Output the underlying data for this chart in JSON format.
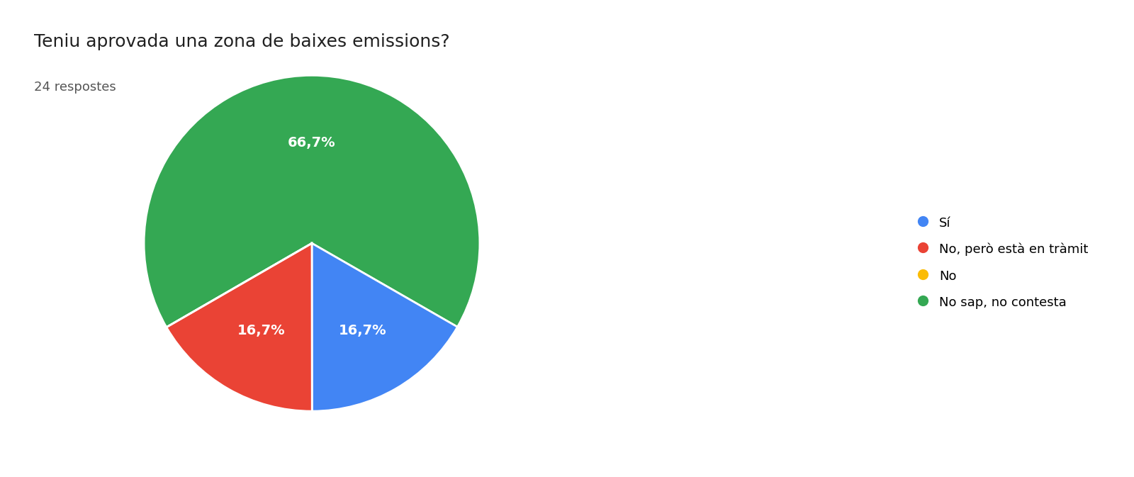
{
  "title": "Teniu aprovada una zona de baixes emissions?",
  "subtitle": "24 respostes",
  "labels": [
    "Sí",
    "No, però està en tràmit",
    "No",
    "No sap, no contesta"
  ],
  "values": [
    16.7,
    16.7,
    0.0,
    66.7
  ],
  "colors": [
    "#4285F4",
    "#EA4335",
    "#FBBC04",
    "#34A853"
  ],
  "pct_labels": [
    "16,7%",
    "16,7%",
    "",
    "66,7%"
  ],
  "title_fontsize": 18,
  "subtitle_fontsize": 13,
  "legend_fontsize": 13,
  "pct_fontsize": 14,
  "background_color": "#ffffff",
  "text_color": "#212121",
  "pct_text_color": "#ffffff"
}
